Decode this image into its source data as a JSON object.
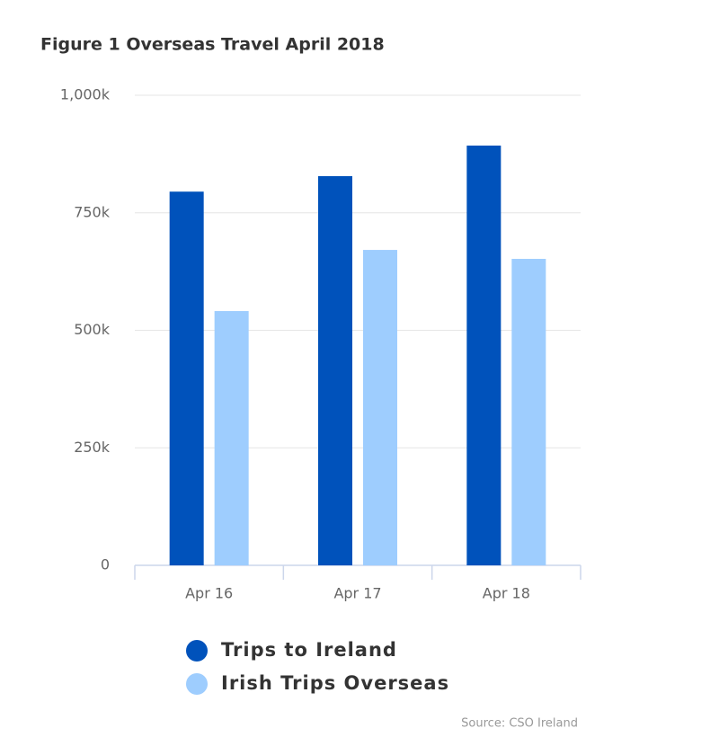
{
  "chart_data": {
    "type": "bar",
    "title": "Figure 1 Overseas Travel April 2018",
    "categories": [
      "Apr 16",
      "Apr 17",
      "Apr 18"
    ],
    "series": [
      {
        "name": "Trips to Ireland",
        "color": "#0052bb",
        "values": [
          795000,
          828000,
          893000
        ]
      },
      {
        "name": "Irish Trips Overseas",
        "color": "#9ecdfe",
        "values": [
          541000,
          671000,
          652000
        ]
      }
    ],
    "ylim": [
      0,
      1000000
    ],
    "yticks": [
      0,
      {
        "value": 250000,
        "label": "250k"
      },
      {
        "value": 500000,
        "label": "500k"
      },
      {
        "value": 750000,
        "label": "750k"
      },
      {
        "value": 1000000,
        "label": "1,000k"
      }
    ],
    "grid": true,
    "legend": "bottom",
    "source": "Source: CSO Ireland"
  }
}
